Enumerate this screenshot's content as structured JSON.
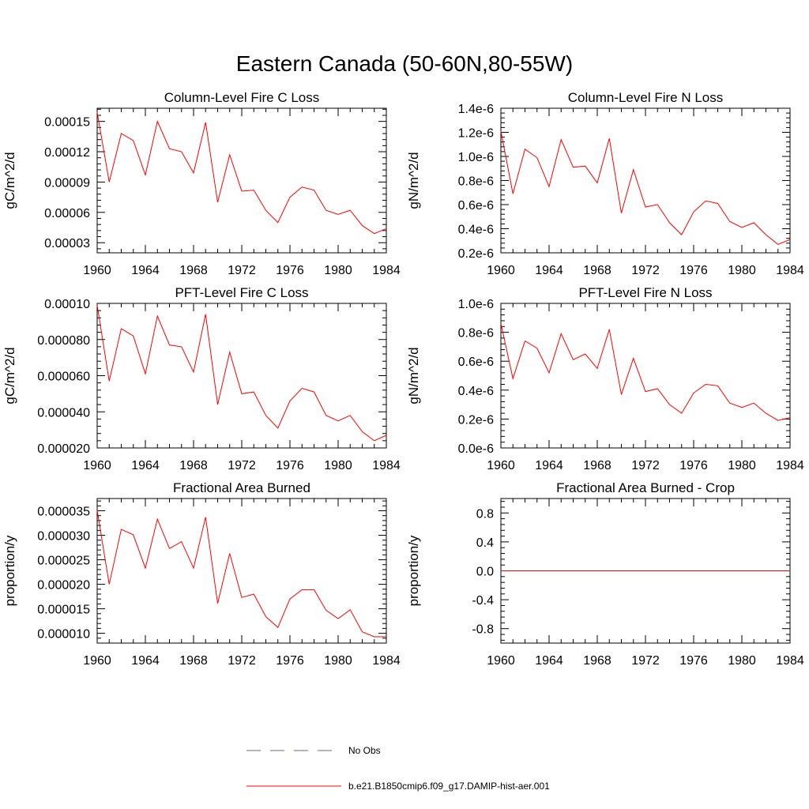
{
  "figure": {
    "title": "Eastern Canada (50-60N,80-55W)"
  },
  "colors": {
    "series": "#ff0000",
    "obs": "#6666aa",
    "axis": "#000000"
  },
  "legend": {
    "placement": "bottom-center",
    "entries": [
      {
        "label": "No Obs",
        "style": "dashed",
        "color": "#6666aa"
      },
      {
        "label": "b.e21.B1850cmip6.f09_g17.DAMIP-hist-aer.001",
        "style": "solid",
        "color": "#ff0000"
      }
    ]
  },
  "chart_data": [
    {
      "type": "line",
      "title": "Column-Level Fire C Loss",
      "ylabel": "gC/m^2/d",
      "xlim": [
        1960,
        1984
      ],
      "ylim": [
        2e-05,
        0.000163
      ],
      "xticks": [
        1960,
        1964,
        1968,
        1972,
        1976,
        1980,
        1984
      ],
      "xtick_labels": [
        "1960",
        "1964",
        "1968",
        "1972",
        "1976",
        "1980",
        "1984"
      ],
      "yticks": [
        3e-05,
        6e-05,
        9e-05,
        0.00012,
        0.00015
      ],
      "ytick_labels": [
        "0.00003",
        "0.00006",
        "0.00009",
        "0.00012",
        "0.00015"
      ],
      "x": [
        1960,
        1961,
        1962,
        1963,
        1964,
        1965,
        1966,
        1967,
        1968,
        1969,
        1970,
        1971,
        1972,
        1973,
        1974,
        1975,
        1976,
        1977,
        1978,
        1979,
        1980,
        1981,
        1982,
        1983,
        1984
      ],
      "series": [
        {
          "values": [
            0.000159,
            9e-05,
            0.000138,
            0.000131,
            9.7e-05,
            0.00015,
            0.000123,
            0.00012,
            9.9e-05,
            0.000149,
            7e-05,
            0.000117,
            8.1e-05,
            8.2e-05,
            6.2e-05,
            5e-05,
            7.5e-05,
            8.5e-05,
            8.2e-05,
            6.2e-05,
            5.8e-05,
            6.2e-05,
            4.7e-05,
            3.9e-05,
            4.4e-05
          ]
        }
      ]
    },
    {
      "type": "line",
      "title": "Column-Level Fire N Loss",
      "ylabel": "gN/m^2/d",
      "xlim": [
        1960,
        1984
      ],
      "ylim": [
        2e-07,
        1.4e-06
      ],
      "xticks": [
        1960,
        1964,
        1968,
        1972,
        1976,
        1980,
        1984
      ],
      "xtick_labels": [
        "1960",
        "1964",
        "1968",
        "1972",
        "1976",
        "1980",
        "1984"
      ],
      "yticks": [
        2e-07,
        4e-07,
        6e-07,
        8e-07,
        1e-06,
        1.2e-06,
        1.4e-06
      ],
      "ytick_labels": [
        "0.2e-6",
        "0.4e-6",
        "0.6e-6",
        "0.8e-6",
        "1.0e-6",
        "1.2e-6",
        "1.4e-6"
      ],
      "x": [
        1960,
        1961,
        1962,
        1963,
        1964,
        1965,
        1966,
        1967,
        1968,
        1969,
        1970,
        1971,
        1972,
        1973,
        1974,
        1975,
        1976,
        1977,
        1978,
        1979,
        1980,
        1981,
        1982,
        1983,
        1984
      ],
      "series": [
        {
          "values": [
            1.21e-06,
            6.9e-07,
            1.06e-06,
            9.9e-07,
            7.5e-07,
            1.14e-06,
            9.1e-07,
            9.2e-07,
            7.8e-07,
            1.15e-06,
            5.3e-07,
            8.9e-07,
            5.8e-07,
            6e-07,
            4.5e-07,
            3.5e-07,
            5.4e-07,
            6.3e-07,
            6.1e-07,
            4.6e-07,
            4.1e-07,
            4.5e-07,
            3.5e-07,
            2.7e-07,
            3.1e-07
          ]
        }
      ]
    },
    {
      "type": "line",
      "title": "PFT-Level Fire C Loss",
      "ylabel": "gC/m^2/d",
      "xlim": [
        1960,
        1984
      ],
      "ylim": [
        2e-05,
        0.0001
      ],
      "xticks": [
        1960,
        1964,
        1968,
        1972,
        1976,
        1980,
        1984
      ],
      "xtick_labels": [
        "1960",
        "1964",
        "1968",
        "1972",
        "1976",
        "1980",
        "1984"
      ],
      "yticks": [
        2e-05,
        4e-05,
        6e-05,
        8e-05,
        0.0001
      ],
      "ytick_labels": [
        "0.000020",
        "0.000040",
        "0.000060",
        "0.000080",
        "0.00010"
      ],
      "x": [
        1960,
        1961,
        1962,
        1963,
        1964,
        1965,
        1966,
        1967,
        1968,
        1969,
        1970,
        1971,
        1972,
        1973,
        1974,
        1975,
        1976,
        1977,
        1978,
        1979,
        1980,
        1981,
        1982,
        1983,
        1984
      ],
      "series": [
        {
          "values": [
            9.9e-05,
            5.7e-05,
            8.6e-05,
            8.2e-05,
            6.1e-05,
            9.3e-05,
            7.7e-05,
            7.6e-05,
            6.2e-05,
            9.4e-05,
            4.4e-05,
            7.3e-05,
            5e-05,
            5.1e-05,
            3.8e-05,
            3.1e-05,
            4.6e-05,
            5.3e-05,
            5.1e-05,
            3.8e-05,
            3.5e-05,
            3.8e-05,
            2.9e-05,
            2.4e-05,
            2.7e-05
          ]
        }
      ]
    },
    {
      "type": "line",
      "title": "PFT-Level Fire N Loss",
      "ylabel": "gN/m^2/d",
      "xlim": [
        1960,
        1984
      ],
      "ylim": [
        0,
        1e-06
      ],
      "xticks": [
        1960,
        1964,
        1968,
        1972,
        1976,
        1980,
        1984
      ],
      "xtick_labels": [
        "1960",
        "1964",
        "1968",
        "1972",
        "1976",
        "1980",
        "1984"
      ],
      "yticks": [
        0,
        2e-07,
        4e-07,
        6e-07,
        8e-07,
        1e-06
      ],
      "ytick_labels": [
        "0.0e-6",
        "0.2e-6",
        "0.4e-6",
        "0.6e-6",
        "0.8e-6",
        "1.0e-6"
      ],
      "x": [
        1960,
        1961,
        1962,
        1963,
        1964,
        1965,
        1966,
        1967,
        1968,
        1969,
        1970,
        1971,
        1972,
        1973,
        1974,
        1975,
        1976,
        1977,
        1978,
        1979,
        1980,
        1981,
        1982,
        1983,
        1984
      ],
      "series": [
        {
          "values": [
            8.6e-07,
            4.8e-07,
            7.4e-07,
            6.9e-07,
            5.2e-07,
            7.9e-07,
            6.1e-07,
            6.5e-07,
            5.5e-07,
            8.2e-07,
            3.7e-07,
            6.2e-07,
            3.9e-07,
            4.1e-07,
            3e-07,
            2.4e-07,
            3.8e-07,
            4.4e-07,
            4.3e-07,
            3.1e-07,
            2.8e-07,
            3.1e-07,
            2.4e-07,
            1.9e-07,
            2.1e-07
          ]
        }
      ]
    },
    {
      "type": "line",
      "title": "Fractional Area Burned",
      "ylabel": "proportion/y",
      "xlim": [
        1960,
        1984
      ],
      "ylim": [
        8e-06,
        3.75e-05
      ],
      "xticks": [
        1960,
        1964,
        1968,
        1972,
        1976,
        1980,
        1984
      ],
      "xtick_labels": [
        "1960",
        "1964",
        "1968",
        "1972",
        "1976",
        "1980",
        "1984"
      ],
      "yticks": [
        1e-05,
        1.5e-05,
        2e-05,
        2.5e-05,
        3e-05,
        3.5e-05
      ],
      "ytick_labels": [
        "0.000010",
        "0.000015",
        "0.000020",
        "0.000025",
        "0.000030",
        "0.000035"
      ],
      "x": [
        1960,
        1961,
        1962,
        1963,
        1964,
        1965,
        1966,
        1967,
        1968,
        1969,
        1970,
        1971,
        1972,
        1973,
        1974,
        1975,
        1976,
        1977,
        1978,
        1979,
        1980,
        1981,
        1982,
        1983,
        1984
      ],
      "series": [
        {
          "values": [
            3.51e-05,
            2e-05,
            3.12e-05,
            3.01e-05,
            2.33e-05,
            3.33e-05,
            2.73e-05,
            2.87e-05,
            2.33e-05,
            3.37e-05,
            1.61e-05,
            2.63e-05,
            1.73e-05,
            1.8e-05,
            1.34e-05,
            1.12e-05,
            1.7e-05,
            1.89e-05,
            1.89e-05,
            1.47e-05,
            1.3e-05,
            1.48e-05,
            1.03e-05,
            9.3e-06,
            9.3e-06
          ]
        }
      ]
    },
    {
      "type": "line",
      "title": "Fractional Area Burned - Crop",
      "ylabel": "proportion/y",
      "xlim": [
        1960,
        1984
      ],
      "ylim": [
        -1,
        1
      ],
      "xticks": [
        1960,
        1964,
        1968,
        1972,
        1976,
        1980,
        1984
      ],
      "xtick_labels": [
        "1960",
        "1964",
        "1968",
        "1972",
        "1976",
        "1980",
        "1984"
      ],
      "yticks": [
        -0.8,
        -0.4,
        0,
        0.4,
        0.8
      ],
      "ytick_labels": [
        "-0.8",
        "-0.4",
        "0.0",
        "0.4",
        "0.8"
      ],
      "x": [
        1960,
        1961,
        1962,
        1963,
        1964,
        1965,
        1966,
        1967,
        1968,
        1969,
        1970,
        1971,
        1972,
        1973,
        1974,
        1975,
        1976,
        1977,
        1978,
        1979,
        1980,
        1981,
        1982,
        1983,
        1984
      ],
      "series": [
        {
          "values": [
            0,
            0,
            0,
            0,
            0,
            0,
            0,
            0,
            0,
            0,
            0,
            0,
            0,
            0,
            0,
            0,
            0,
            0,
            0,
            0,
            0,
            0,
            0,
            0,
            0
          ]
        }
      ]
    }
  ]
}
